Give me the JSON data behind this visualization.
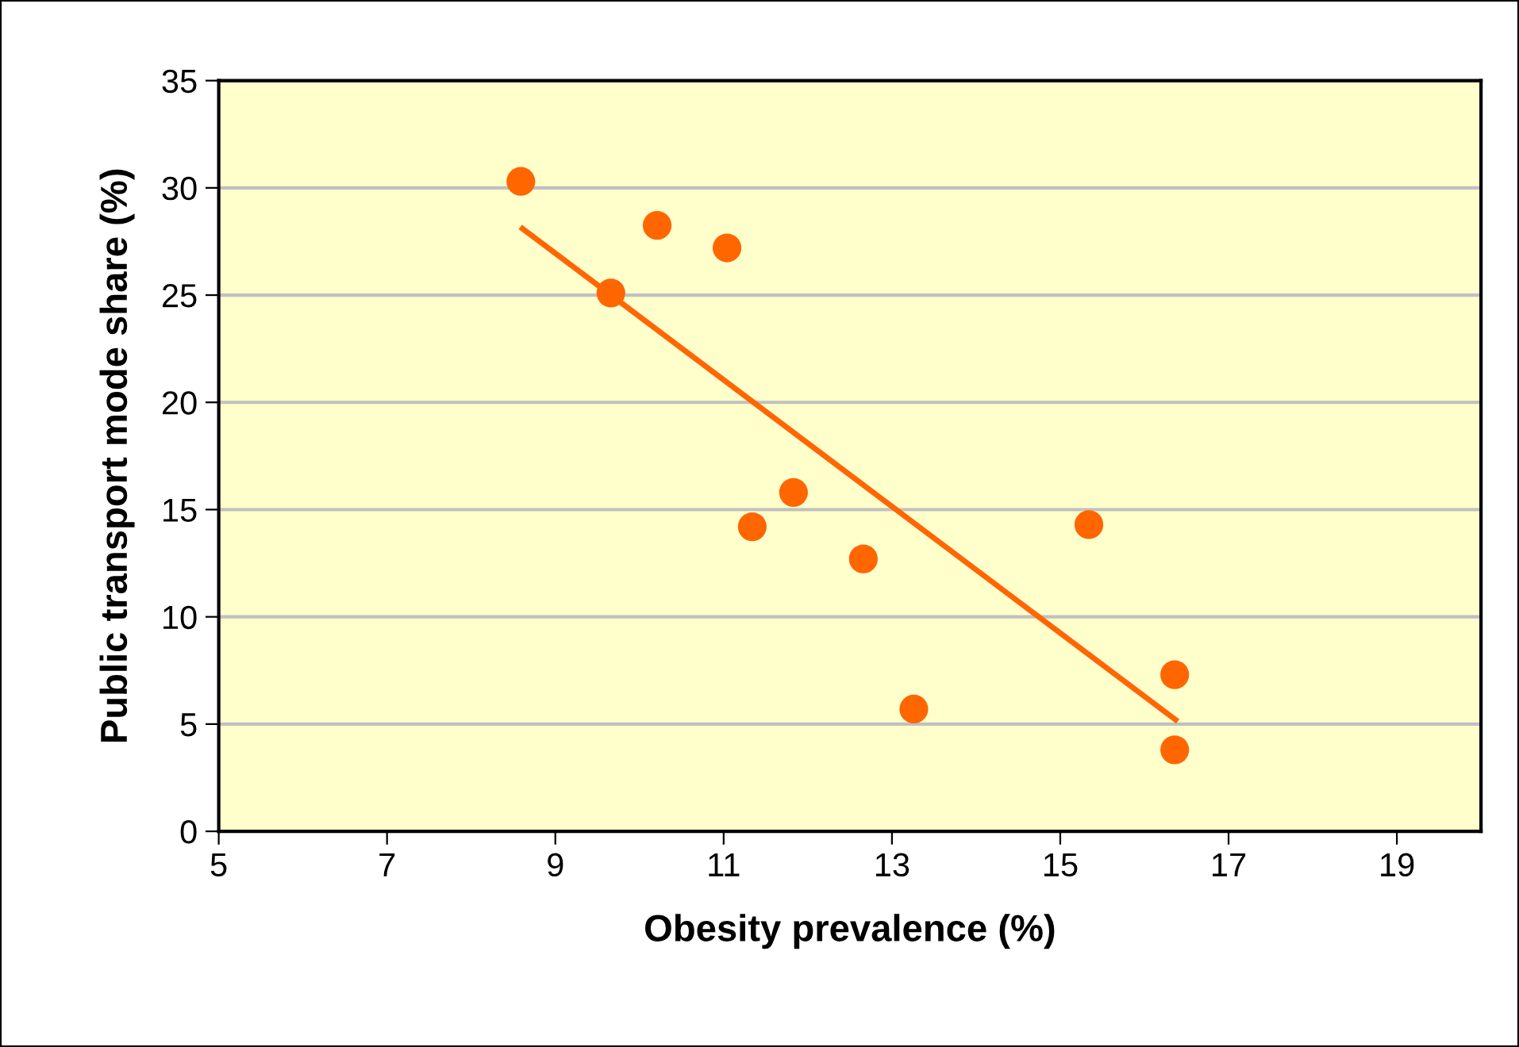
{
  "chart_data": {
    "type": "scatter",
    "xlabel": "Obesity prevalence (%)",
    "ylabel": "Public transport mode share (%)",
    "series": [
      {
        "marker": "circle",
        "color": "#ff6600",
        "x": [
          8.59,
          9.66,
          10.21,
          11.04,
          11.34,
          11.83,
          12.66,
          13.26,
          15.34,
          16.36,
          16.36
        ],
        "values": [
          30.3,
          25.1,
          28.25,
          27.2,
          14.2,
          15.8,
          12.7,
          5.7,
          14.3,
          7.3,
          3.8
        ]
      },
      {
        "type": "line",
        "marker": "none",
        "color": "#ff6600",
        "x": [
          8.61,
          16.37
        ],
        "values": [
          28.1,
          5.2
        ]
      }
    ],
    "xlim": [
      5,
      20
    ],
    "xticks": [
      5,
      7,
      9,
      11,
      13,
      15,
      17,
      19
    ],
    "ylim": [
      0,
      35
    ],
    "yticks": [
      0,
      5,
      10,
      15,
      20,
      25,
      30,
      35
    ],
    "grid": "y",
    "legend": false
  }
}
